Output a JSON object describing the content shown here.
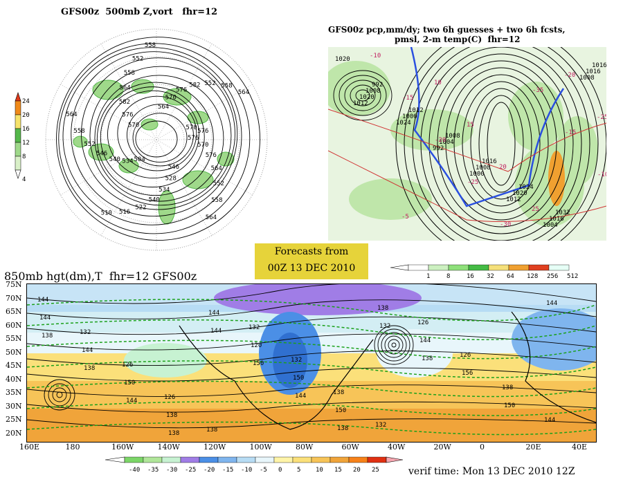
{
  "panel_500mb": {
    "title": "GFS00z  500mb Z,vort   fhr=12",
    "colorbar_ticks": [
      "24",
      "20",
      "16",
      "12",
      "8",
      "4"
    ],
    "contour_labels": [
      "576",
      "570",
      "576",
      "564",
      "552",
      "558",
      "564",
      "546",
      "528",
      "534",
      "540",
      "522",
      "516",
      "510",
      "504",
      "534",
      "540",
      "546",
      "552",
      "558",
      "564",
      "570",
      "576",
      "582",
      "564",
      "558",
      "552",
      "558",
      "564",
      "570",
      "576",
      "582",
      "552",
      "558",
      "564",
      "570",
      "576"
    ]
  },
  "panel_precip": {
    "title_line1": "GFS00z pcp,mm/dy; two 6h guesses + two 6h fcsts,",
    "title_line2": "pmsl, 2-m temp(C)  fhr=12",
    "isobar_labels": [
      "1020",
      "992",
      "1012",
      "1008",
      "1016",
      "1024",
      "1032",
      "1016",
      "1008",
      "1000",
      "1004",
      "1008",
      "1020",
      "1016",
      "1016",
      "1020",
      "1024",
      "992",
      "1000",
      "1012",
      "1004",
      "1008",
      "1012"
    ],
    "temp_labels": [
      "-10",
      "-15",
      "-20",
      "-25",
      "-30",
      "-35",
      "-15",
      "-10",
      "-5",
      "10",
      "15",
      "20",
      "25",
      "-20",
      "-25"
    ],
    "colorbar_ticks": [
      "1",
      "8",
      "16",
      "32",
      "64",
      "128",
      "256",
      "512"
    ]
  },
  "forecast_box": {
    "line1": "Forecasts from",
    "line2": "00Z 13 DEC 2010"
  },
  "panel_850mb": {
    "title": "850mb hgt(dm),T  fhr=12 GFS00z",
    "lat_labels": [
      "75N",
      "70N",
      "65N",
      "60N",
      "55N",
      "50N",
      "45N",
      "40N",
      "35N",
      "30N",
      "25N",
      "20N"
    ],
    "lon_labels": [
      "160E",
      "180",
      "160W",
      "140W",
      "120W",
      "100W",
      "80W",
      "60W",
      "40W",
      "20W",
      "0",
      "20E",
      "40E"
    ],
    "height_labels": [
      "144",
      "132",
      "126",
      "126",
      "138",
      "132",
      "132",
      "138",
      "132",
      "126",
      "126",
      "138",
      "144",
      "144",
      "144",
      "150",
      "138",
      "144",
      "120",
      "150",
      "150",
      "138",
      "144",
      "156",
      "150",
      "144",
      "138",
      "138",
      "144",
      "138",
      "144",
      "150",
      "144",
      "138",
      "132",
      "138"
    ],
    "colorbar_ticks": [
      "-40",
      "-35",
      "-30",
      "-25",
      "-20",
      "-15",
      "-10",
      "-5",
      "0",
      "5",
      "10",
      "15",
      "20",
      "25"
    ]
  },
  "verif_time": "verif time: Mon 13 DEC 2010 12Z",
  "colors": {
    "vort_scale": [
      "#ffffff",
      "#d9f0c8",
      "#9fd98a",
      "#55b84a",
      "#f6e36b",
      "#f08a1a",
      "#e03a1a"
    ],
    "precip_scale": [
      "#ffffff",
      "#ccf0c0",
      "#8ee07a",
      "#44bb44",
      "#f5e07a",
      "#f0a030",
      "#e04020",
      "#e6fff6"
    ],
    "temp_scale": [
      "#46c850",
      "#7cd668",
      "#b0e69a",
      "#c7f2d2",
      "#a07de6",
      "#4b8fe6",
      "#7fb5ee",
      "#b7dcf4",
      "#e8f6fb",
      "#fff4a8",
      "#fbe07a",
      "#f7c458",
      "#f0a43a",
      "#f7821a",
      "#e03012",
      "#f6a6b0"
    ]
  }
}
